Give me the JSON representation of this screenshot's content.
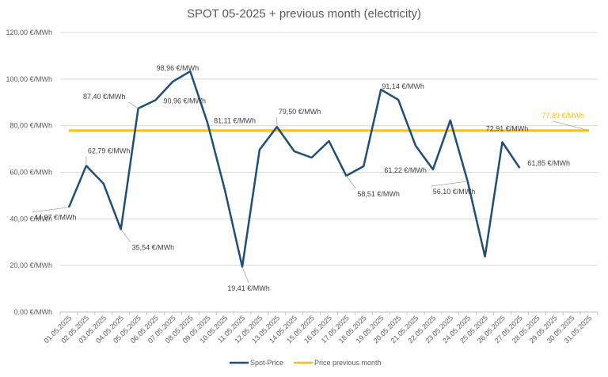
{
  "chart_data": {
    "type": "line",
    "title": "SPOT 05-2025 + previous month (electricity)",
    "xlabel": "",
    "ylabel": "",
    "ylim": [
      0,
      120
    ],
    "yticks": [
      0,
      20,
      40,
      60,
      80,
      100,
      120
    ],
    "ytick_labels": [
      "0,00 €/MWh",
      "20,00 €/MWh",
      "40,00 €/MWh",
      "60,00 €/MWh",
      "80,00 €/MWh",
      "100,00 €/MWh",
      "120,00 €/MWh"
    ],
    "grid": true,
    "legend_position": "bottom",
    "categories": [
      "01.05.2025",
      "02.05.2025",
      "03.05.2025",
      "04.05.2025",
      "05.05.2025",
      "06.05.2025",
      "07.05.2025",
      "08.05.2025",
      "09.05.2025",
      "10.05.2025",
      "11.05.2025",
      "12.05.2025",
      "13.05.2025",
      "14.05.2025",
      "15.05.2025",
      "16.05.2025",
      "17.05.2025",
      "18.05.2025",
      "19.05.2025",
      "20.05.2025",
      "21.05.2025",
      "22.05.2025",
      "23.05.2025",
      "24.05.2025",
      "25.05.2025",
      "26.05.2025",
      "27.05.2025",
      "28.05.2025",
      "29.05.2025",
      "30.05.2025",
      "31.05.2025"
    ],
    "series": [
      {
        "name": "Spot-Price",
        "color": "#1f4e79",
        "values": [
          44.97,
          62.79,
          55.1,
          35.54,
          87.4,
          90.96,
          98.96,
          103.3,
          81.11,
          52.3,
          19.41,
          69.7,
          79.5,
          69.0,
          66.3,
          73.4,
          58.51,
          62.6,
          95.5,
          91.14,
          71.4,
          61.22,
          82.3,
          56.1,
          23.8,
          72.91,
          61.85,
          null,
          null,
          null,
          null
        ]
      },
      {
        "name": "Price previous month",
        "color": "#ffc000",
        "values": [
          77.89,
          77.89,
          77.89,
          77.89,
          77.89,
          77.89,
          77.89,
          77.89,
          77.89,
          77.89,
          77.89,
          77.89,
          77.89,
          77.89,
          77.89,
          77.89,
          77.89,
          77.89,
          77.89,
          77.89,
          77.89,
          77.89,
          77.89,
          77.89,
          77.89,
          77.89,
          77.89,
          77.89,
          77.89,
          77.89,
          77.89
        ]
      }
    ],
    "data_labels": [
      {
        "series": 0,
        "index": 0,
        "text": "44,97 €/MWh",
        "placement": "below-left"
      },
      {
        "series": 0,
        "index": 1,
        "text": "62,79 €/MWh",
        "placement": "above-right"
      },
      {
        "series": 0,
        "index": 3,
        "text": "35,54 €/MWh",
        "placement": "below-right"
      },
      {
        "series": 0,
        "index": 4,
        "text": "87,40 €/MWh",
        "placement": "above-left"
      },
      {
        "series": 0,
        "index": 6,
        "text": "98,96 €/MWh",
        "placement": "above"
      },
      {
        "series": 0,
        "index": 5,
        "text": "90,96 €/MWh",
        "placement": "below-right"
      },
      {
        "series": 0,
        "index": 8,
        "text": "81,11 €/MWh",
        "placement": "right"
      },
      {
        "series": 0,
        "index": 10,
        "text": "19,41 €/MWh",
        "placement": "below"
      },
      {
        "series": 0,
        "index": 12,
        "text": "79,50 €/MWh",
        "placement": "above-right"
      },
      {
        "series": 0,
        "index": 16,
        "text": "58,51 €/MWh",
        "placement": "below-right"
      },
      {
        "series": 0,
        "index": 19,
        "text": "91,14 €/MWh",
        "placement": "above"
      },
      {
        "series": 0,
        "index": 21,
        "text": "61,22 €/MWh",
        "placement": "left"
      },
      {
        "series": 0,
        "index": 23,
        "text": "56,10 €/MWh",
        "placement": "below-left"
      },
      {
        "series": 0,
        "index": 25,
        "text": "72,91 €/MWh",
        "placement": "above"
      },
      {
        "series": 0,
        "index": 26,
        "text": "61,85 €/MWh",
        "placement": "right"
      },
      {
        "series": 1,
        "index": 30,
        "text": "77,89 €/MWh",
        "placement": "above-left"
      }
    ]
  }
}
